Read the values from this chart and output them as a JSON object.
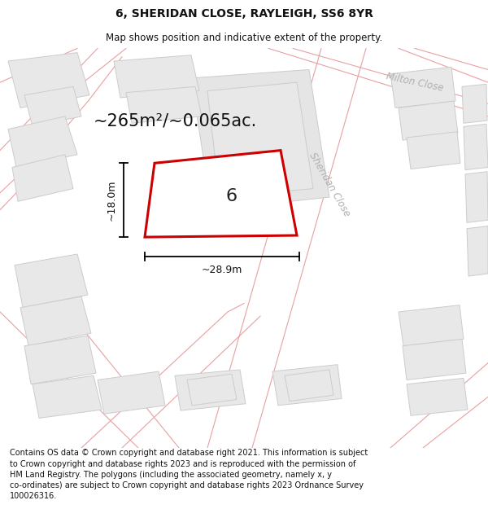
{
  "title": "6, SHERIDAN CLOSE, RAYLEIGH, SS6 8YR",
  "subtitle": "Map shows position and indicative extent of the property.",
  "footer": "Contains OS data © Crown copyright and database right 2021. This information is subject\nto Crown copyright and database rights 2023 and is reproduced with the permission of\nHM Land Registry. The polygons (including the associated geometry, namely x, y\nco-ordinates) are subject to Crown copyright and database rights 2023 Ordnance Survey\n100026316.",
  "area_text": "~265m²/~0.065ac.",
  "width_text": "~28.9m",
  "height_text": "~18.0m",
  "house_number": "6",
  "bg_color": "#ffffff",
  "building_fill": "#e8e8e8",
  "building_edge": "#cccccc",
  "road_line_color": "#e8a0a0",
  "highlight_fill": "#ffffff",
  "highlight_stroke": "#cc0000",
  "road_label_color": "#aaaaaa",
  "title_fontsize": 10,
  "subtitle_fontsize": 8.5,
  "footer_fontsize": 7,
  "area_fontsize": 15,
  "label_fontsize": 9,
  "number_fontsize": 16
}
